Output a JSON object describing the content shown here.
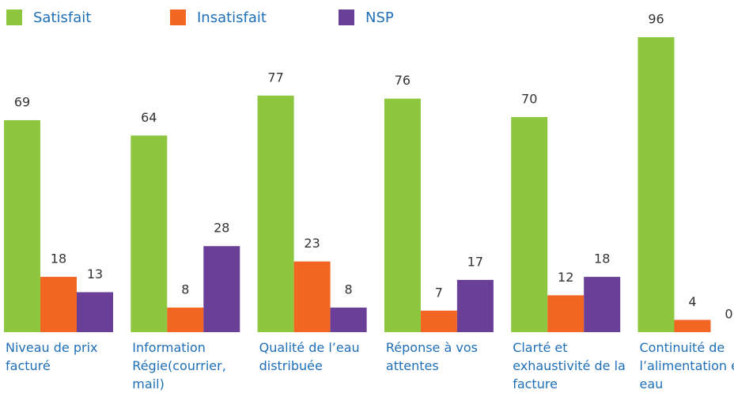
{
  "chart_data": {
    "type": "bar",
    "categories": [
      "Niveau de prix facturé",
      "Information Régie(courrier, mail)",
      "Qualité de l’eau distribuée",
      "Réponse à vos attentes",
      "Clarté et exhaustivité de la facture",
      "Continuité de l’alimentation en eau"
    ],
    "series": [
      {
        "name": "Satisfait",
        "color": "#8dc63f",
        "values": [
          69,
          64,
          77,
          76,
          70,
          96
        ]
      },
      {
        "name": "Insatisfait",
        "color": "#f26522",
        "values": [
          18,
          8,
          23,
          7,
          12,
          4
        ]
      },
      {
        "name": "NSP",
        "color": "#6a3f98",
        "values": [
          13,
          28,
          8,
          17,
          18,
          0
        ]
      }
    ],
    "ylim": [
      0,
      100
    ],
    "grid": false
  }
}
